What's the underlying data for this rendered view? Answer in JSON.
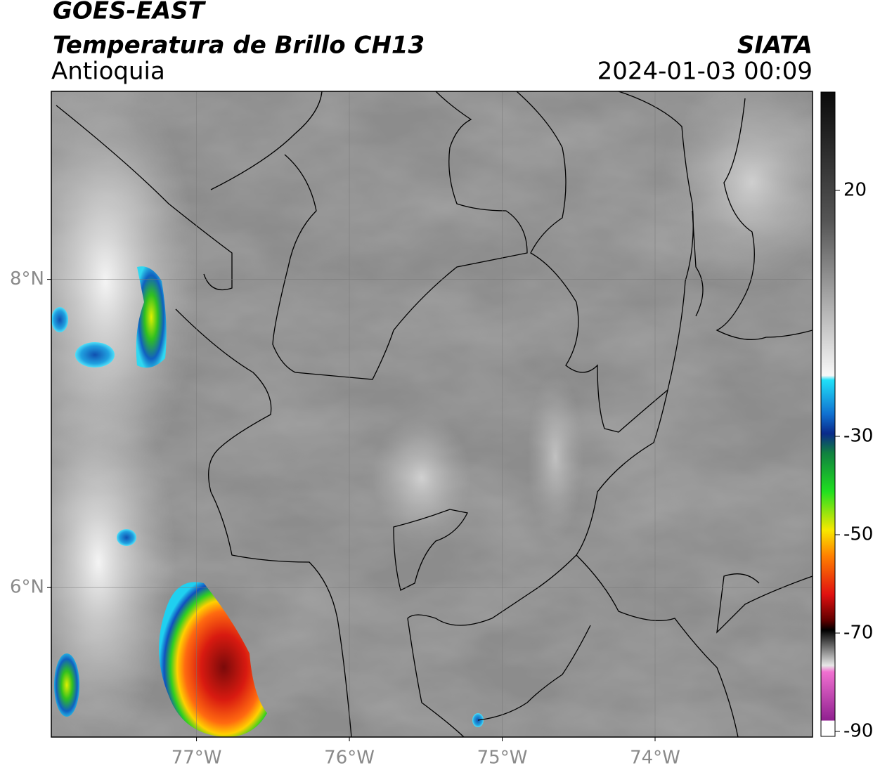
{
  "header": {
    "title": "GOES-EAST",
    "subtitle": "Temperatura de Brillo CH13",
    "region": "Antioquia",
    "source": "SIATA",
    "datetime": "2024-01-03 00:09"
  },
  "map": {
    "lon_range": [
      -77.95,
      -72.97
    ],
    "lat_range": [
      5.03,
      9.22
    ],
    "xticks": [
      {
        "value": -77,
        "label": "77°W"
      },
      {
        "value": -76,
        "label": "76°W"
      },
      {
        "value": -75,
        "label": "75°W"
      },
      {
        "value": -74,
        "label": "74°W"
      }
    ],
    "yticks": [
      {
        "value": 8,
        "label": "8°N"
      },
      {
        "value": 6,
        "label": "6°N"
      }
    ]
  },
  "colorbar": {
    "lim": [
      -91,
      40
    ],
    "ticks": [
      20,
      -30,
      -50,
      -70,
      -90
    ]
  }
}
